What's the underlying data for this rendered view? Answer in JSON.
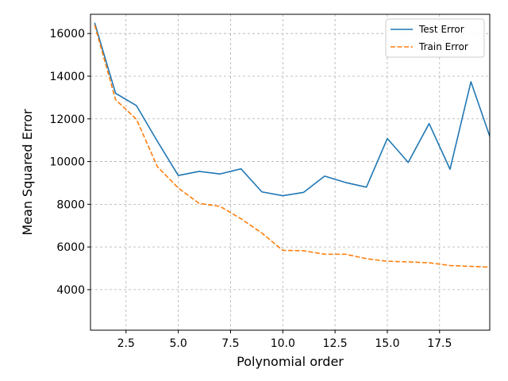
{
  "chart_data": {
    "type": "line",
    "xlabel": "Polynomial order",
    "ylabel": "Mean Squared Error",
    "xlim": [
      0.8,
      19.9
    ],
    "ylim": [
      2100,
      16900
    ],
    "x_ticks": [
      2.5,
      5.0,
      7.5,
      10.0,
      12.5,
      15.0,
      17.5
    ],
    "x_tick_labels": [
      "2.5",
      "5.0",
      "7.5",
      "10.0",
      "12.5",
      "15.0",
      "17.5"
    ],
    "y_ticks": [
      4000,
      6000,
      8000,
      10000,
      12000,
      14000,
      16000
    ],
    "y_tick_labels": [
      "4000",
      "6000",
      "8000",
      "10000",
      "12000",
      "14000",
      "16000"
    ],
    "grid": true,
    "legend_position": "top-right",
    "x": [
      1,
      2,
      3,
      4,
      5,
      6,
      7,
      8,
      9,
      10,
      11,
      12,
      13,
      14,
      15,
      16,
      17,
      18,
      19,
      20
    ],
    "series": [
      {
        "name": "Test Error",
        "color": "#1f77b4",
        "style": "solid",
        "values": [
          16500,
          13200,
          12620,
          10950,
          9350,
          9540,
          9420,
          9660,
          8580,
          8400,
          8560,
          9320,
          9020,
          8800,
          11080,
          9960,
          11780,
          9640,
          13740,
          10900
        ]
      },
      {
        "name": "Train Error",
        "color": "#ff7f0e",
        "style": "dashed",
        "values": [
          16400,
          12900,
          11980,
          9760,
          8760,
          8040,
          7900,
          7320,
          6650,
          5840,
          5820,
          5660,
          5660,
          5450,
          5330,
          5300,
          5260,
          5130,
          5090,
          5050
        ]
      }
    ]
  }
}
